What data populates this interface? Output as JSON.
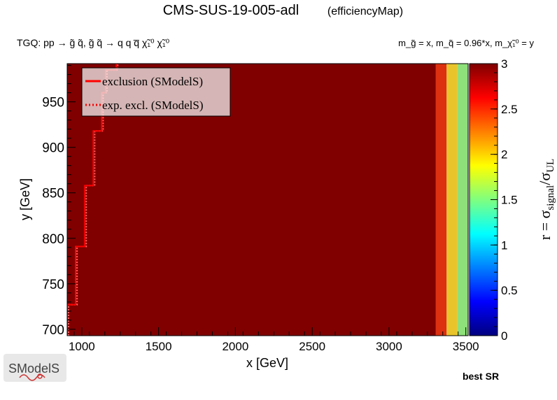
{
  "chart_data": {
    "type": "heatmap",
    "title": "CMS-SUS-19-005-adl",
    "subtitle": "(efficiencyMap)",
    "process_label": "TGQ: pp  → g̃ q̃, g̃ q̃ → q q q̅ χ̃₁⁰ χ̃₁⁰",
    "mass_label": "m_g̃ = x, m_q̃ = 0.96*x, m_χ̃₁⁰ = y",
    "xlabel": "x [GeV]",
    "ylabel": "y [GeV]",
    "zlabel": "r = σsignal/σUL",
    "xlim": [
      905,
      3515
    ],
    "ylim": [
      693,
      992
    ],
    "zlim": [
      0,
      3
    ],
    "x_ticks": [
      1000,
      1500,
      2000,
      2500,
      3000,
      3500
    ],
    "y_ticks": [
      700,
      750,
      800,
      850,
      900,
      950
    ],
    "z_ticks": [
      0,
      0.5,
      1,
      1.5,
      2,
      2.5,
      3
    ],
    "grid": false,
    "legend_position": "top-left",
    "legend": [
      {
        "name": "exclusion (SModelS)",
        "style": "solid",
        "color": "#ff0000"
      },
      {
        "name": "exp. excl. (SModelS)",
        "style": "dotted",
        "color": "#ff0000"
      }
    ],
    "cells": [
      {
        "x0": 905,
        "x1": 3305,
        "y0": 693,
        "y1": 992,
        "r": 3.0,
        "color": "#800000"
      },
      {
        "x0": 3305,
        "x1": 3375,
        "y0": 693,
        "y1": 992,
        "r": 2.6,
        "color": "#dd3010"
      },
      {
        "x0": 3375,
        "x1": 3445,
        "y0": 693,
        "y1": 992,
        "r": 2.25,
        "color": "#e9c42b"
      },
      {
        "x0": 3445,
        "x1": 3515,
        "y0": 693,
        "y1": 992,
        "r": 1.9,
        "color": "#8ee07a"
      }
    ],
    "exclusion_curve": {
      "x": [
        905,
        905,
        960,
        960,
        1020,
        1020,
        1075,
        1075,
        1130,
        1130,
        1155,
        1155,
        1225,
        1225
      ],
      "y": [
        693,
        727,
        727,
        791,
        791,
        858,
        858,
        918,
        918,
        960,
        960,
        985,
        985,
        992
      ]
    },
    "colormap": [
      "#00007f",
      "#0000ff",
      "#007fff",
      "#00ffff",
      "#7fff7f",
      "#ffff00",
      "#ff7f00",
      "#ff0000",
      "#7f0000"
    ],
    "footer_right": "best SR",
    "logo_text": "SModelS"
  }
}
